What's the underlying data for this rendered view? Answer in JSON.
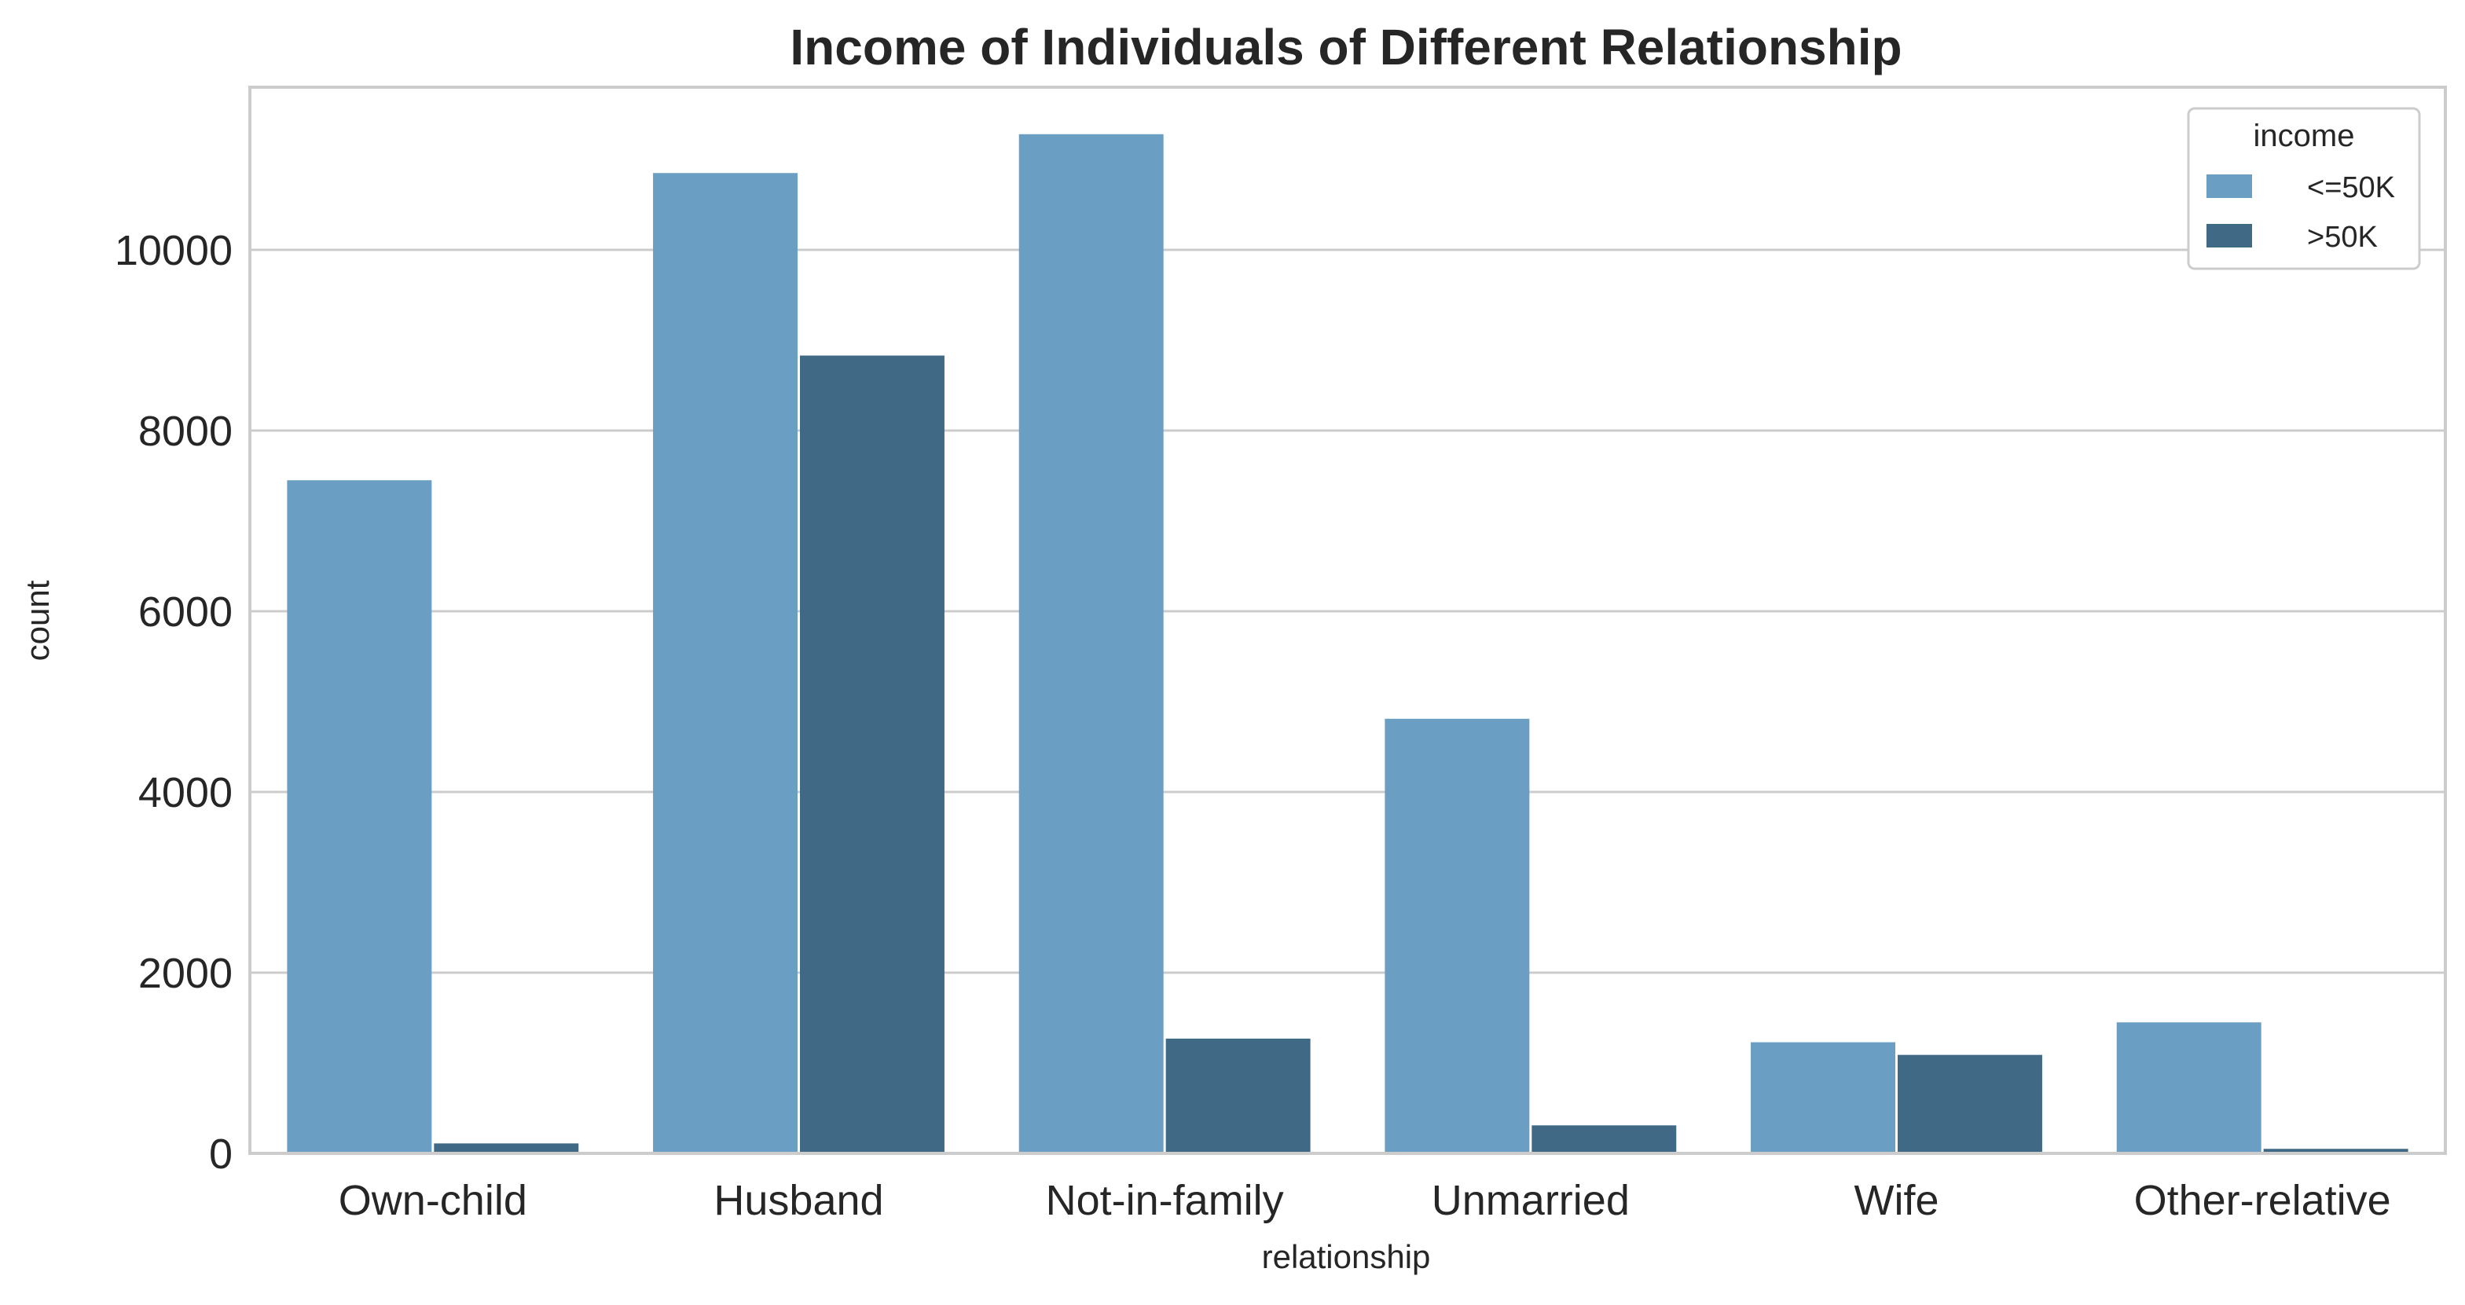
{
  "chart_data": {
    "type": "bar",
    "title": "Income of Individuals of Different Relationship",
    "xlabel": "relationship",
    "ylabel": "count",
    "categories": [
      "Own-child",
      "Husband",
      "Not-in-family",
      "Unmarried",
      "Wife",
      "Other-relative"
    ],
    "series": [
      {
        "name": "<=50K",
        "color": "#6a9ec2",
        "values": [
          7450,
          10850,
          11280,
          4810,
          1230,
          1450
        ]
      },
      {
        "name": ">50K",
        "color": "#406986",
        "values": [
          110,
          8830,
          1270,
          310,
          1090,
          50
        ]
      }
    ],
    "ylim": [
      0,
      11800
    ],
    "yticks": [
      0,
      2000,
      4000,
      6000,
      8000,
      10000
    ],
    "grid": true,
    "legend": {
      "title": "income",
      "placement": "top-right"
    }
  }
}
